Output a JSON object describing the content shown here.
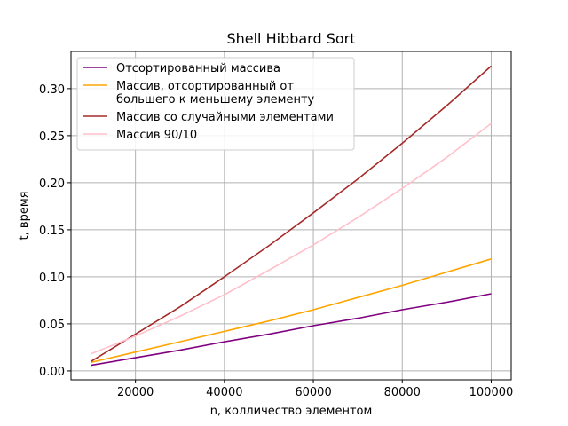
{
  "chart_data": {
    "type": "line",
    "title": "Shell Hibbard Sort",
    "xlabel": "n, колличество элементом",
    "ylabel": "t, время",
    "xlim": [
      5500,
      104500
    ],
    "ylim": [
      -0.0095,
      0.3395
    ],
    "xticks": [
      20000,
      40000,
      60000,
      80000,
      100000
    ],
    "yticks": [
      0.0,
      0.05,
      0.1,
      0.15,
      0.2,
      0.25,
      0.3
    ],
    "xtick_labels": [
      "20000",
      "40000",
      "60000",
      "80000",
      "100000"
    ],
    "ytick_labels": [
      "0.00",
      "0.05",
      "0.10",
      "0.15",
      "0.20",
      "0.25",
      "0.30"
    ],
    "grid": true,
    "legend_position": "upper-left",
    "x": [
      10000,
      20000,
      30000,
      40000,
      50000,
      60000,
      70000,
      80000,
      90000,
      100000
    ],
    "series": [
      {
        "name": "Отсортированный массива",
        "legend_lines": [
          "Отсортированный массива"
        ],
        "color": "#800080",
        "values": [
          0.006,
          0.014,
          0.022,
          0.031,
          0.039,
          0.048,
          0.056,
          0.065,
          0.073,
          0.082
        ]
      },
      {
        "name": "Массив, отсортированный от большего к меньшему элементу",
        "legend_lines": [
          "Массив, отсортированный от",
          "большего к меньшему элементу"
        ],
        "color": "#ffa500",
        "values": [
          0.009,
          0.02,
          0.031,
          0.042,
          0.053,
          0.065,
          0.078,
          0.091,
          0.105,
          0.119
        ]
      },
      {
        "name": "Массив со случайными элементами",
        "legend_lines": [
          "Массив со случайными элементами"
        ],
        "color": "#a52a2a",
        "values": [
          0.01,
          0.039,
          0.068,
          0.1,
          0.133,
          0.168,
          0.204,
          0.242,
          0.282,
          0.324
        ]
      },
      {
        "name": "Массив 90/10",
        "legend_lines": [
          "Массив 90/10"
        ],
        "color": "#ffc0cb",
        "values": [
          0.018,
          0.037,
          0.058,
          0.081,
          0.107,
          0.134,
          0.163,
          0.194,
          0.227,
          0.263
        ]
      }
    ]
  }
}
